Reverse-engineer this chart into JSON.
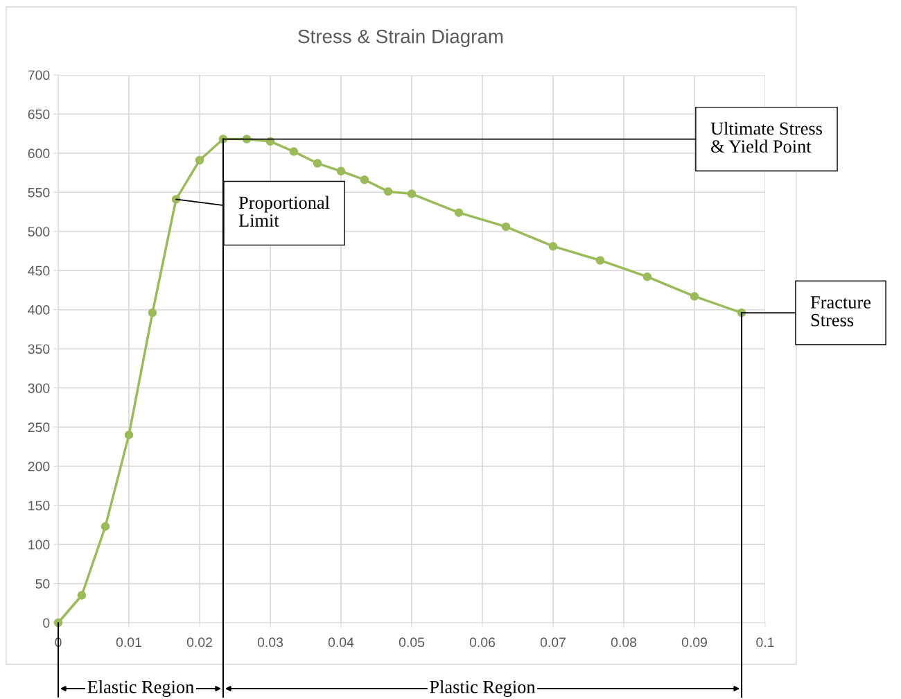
{
  "chart_data": {
    "type": "line",
    "title": "Stress & Strain Diagram",
    "x": [
      0,
      0.00333,
      0.00667,
      0.01,
      0.01333,
      0.01667,
      0.02,
      0.02333,
      0.02667,
      0.03,
      0.03333,
      0.03667,
      0.04,
      0.04333,
      0.04667,
      0.05,
      0.05667,
      0.06333,
      0.07,
      0.07667,
      0.08333,
      0.09,
      0.09667
    ],
    "series": [
      {
        "color": "#9bbb59",
        "values": [
          0,
          35,
          123,
          240,
          396,
          541,
          591,
          618,
          618,
          615,
          602,
          587,
          577,
          566,
          551,
          548,
          524,
          506,
          481,
          463,
          442,
          417,
          396
        ]
      }
    ],
    "xlim": [
      0,
      0.1
    ],
    "xticks": [
      0,
      0.01,
      0.02,
      0.03,
      0.04,
      0.05,
      0.06,
      0.07,
      0.08,
      0.09,
      0.1
    ],
    "ylim": [
      0,
      700
    ],
    "yticks": [
      0,
      50,
      100,
      150,
      200,
      250,
      300,
      350,
      400,
      450,
      500,
      550,
      600,
      650,
      700
    ],
    "grid": true,
    "marker": "circle",
    "line_style": "solid",
    "annotations": [
      {
        "text": "Proportional\nLimit",
        "x": 0.01667,
        "y": 541
      },
      {
        "text": "Ultimate Stress\n& Yield Point",
        "x": 0.02333,
        "y": 618
      },
      {
        "text": "Fracture\nStress",
        "x": 0.09667,
        "y": 396
      },
      "Elastic Region",
      "Plastic Region"
    ],
    "ref_lines": [
      {
        "axis": "x",
        "value": 0.02333,
        "color": "#000000",
        "line_style": "solid"
      },
      {
        "axis": "x",
        "value": 0.09667,
        "color": "#000000",
        "line_style": "solid"
      }
    ]
  }
}
